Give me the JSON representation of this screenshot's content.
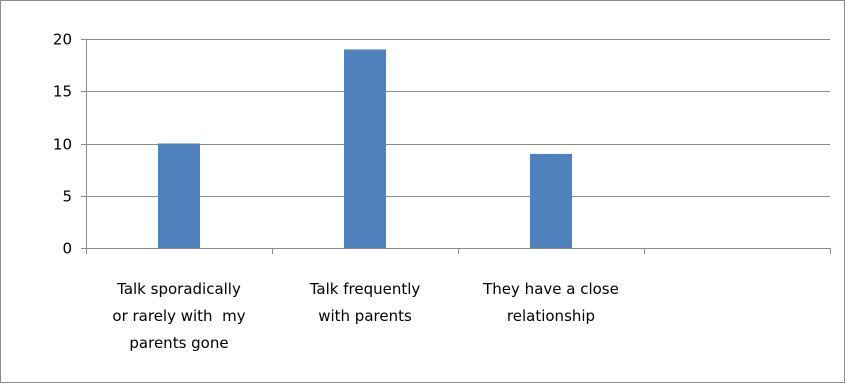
{
  "chart_data": {
    "type": "bar",
    "categories": [
      [
        "Talk sporadically",
        "or rarely with  my",
        "parents gone"
      ],
      [
        "Talk frequently",
        "with parents"
      ],
      [
        "They have a close",
        "relationship"
      ],
      [
        ""
      ]
    ],
    "values": [
      10,
      19,
      9,
      null
    ],
    "ylim": [
      0,
      20
    ],
    "yticks": [
      0,
      5,
      10,
      15,
      20
    ],
    "grid": true,
    "legend": "none",
    "bar_color": "#4f81bd"
  }
}
